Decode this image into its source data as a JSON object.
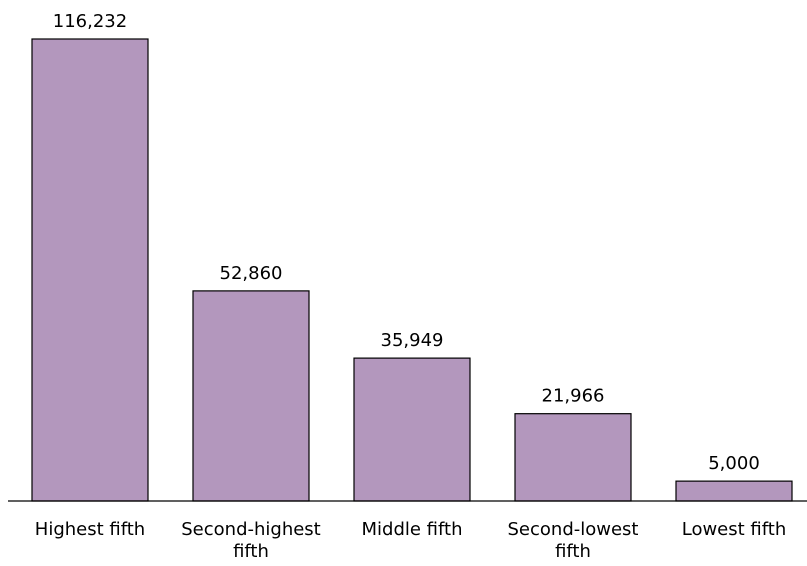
{
  "chart_data": {
    "type": "bar",
    "categories": [
      [
        "Highest fifth"
      ],
      [
        "Second-highest",
        "fifth"
      ],
      [
        "Middle fifth"
      ],
      [
        "Second-lowest",
        "fifth"
      ],
      [
        "Lowest fifth"
      ]
    ],
    "values": [
      116232,
      52860,
      35949,
      21966,
      5000
    ],
    "value_labels": [
      "116,232",
      "52,860",
      "35,949",
      "21,966",
      "5,000"
    ],
    "ylim": [
      0,
      116232
    ],
    "grid": false,
    "legend": "none",
    "bar_color": "#b397bd",
    "bar_outline_color": "#000000"
  }
}
